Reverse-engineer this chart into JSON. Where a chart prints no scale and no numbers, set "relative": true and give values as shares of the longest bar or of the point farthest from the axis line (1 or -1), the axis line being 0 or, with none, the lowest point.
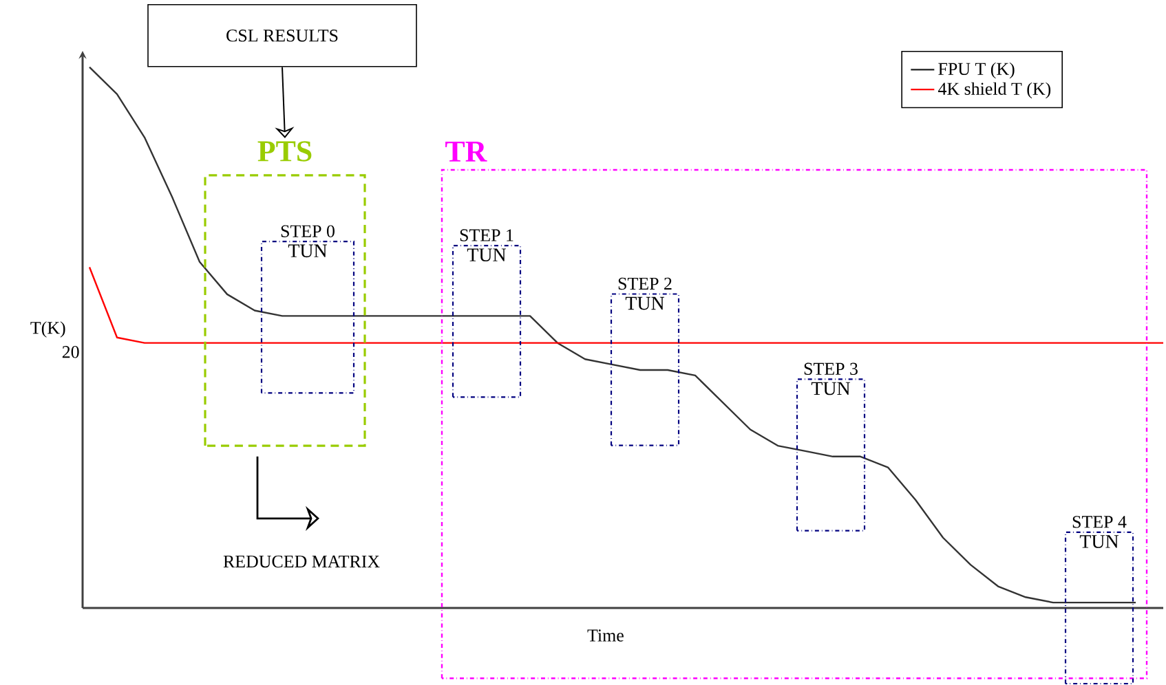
{
  "chart_data": {
    "type": "line",
    "relative": true,
    "xlabel": "Time",
    "ylabel": "T(K)",
    "categories": [
      null,
      null,
      null,
      null,
      null,
      null,
      null,
      null,
      null,
      null,
      null,
      null,
      null,
      null,
      null,
      null,
      null,
      null,
      null,
      null,
      null,
      null,
      null,
      null,
      null,
      null,
      null,
      null,
      null,
      null,
      null,
      null,
      null,
      null,
      null,
      null,
      null,
      null,
      null,
      null
    ],
    "series": [
      {
        "name": "FPU T (K)",
        "color": "#333333",
        "values": [
          1.0,
          0.95,
          0.87,
          0.76,
          0.64,
          0.58,
          0.55,
          0.54,
          0.54,
          0.54,
          0.54,
          0.54,
          0.54,
          0.54,
          0.54,
          0.54,
          0.54,
          0.49,
          0.46,
          0.45,
          0.44,
          0.44,
          0.43,
          0.38,
          0.33,
          0.3,
          0.29,
          0.28,
          0.28,
          0.26,
          0.2,
          0.13,
          0.08,
          0.04,
          0.02,
          0.01,
          0.01,
          0.01,
          0.01,
          null
        ]
      },
      {
        "name": "4K shield T (K)",
        "color": "#ff0000",
        "values": [
          0.63,
          0.5,
          0.49,
          0.49,
          0.49,
          0.49,
          0.49,
          0.49,
          0.49,
          0.49,
          0.49,
          0.49,
          0.49,
          0.49,
          0.49,
          0.49,
          0.49,
          0.49,
          0.49,
          0.49,
          0.49,
          0.49,
          0.49,
          0.49,
          0.49,
          0.49,
          0.49,
          0.49,
          0.49,
          0.49,
          0.49,
          0.49,
          0.49,
          0.49,
          0.49,
          0.49,
          0.49,
          0.49,
          0.49,
          0.49
        ]
      }
    ],
    "annotations": [
      "STEP 0",
      "STEP 1",
      "STEP 2",
      "STEP 3",
      "STEP 4",
      "20",
      "CSL RESULTS",
      "REDUCED MATRIX",
      "PTS",
      "TR",
      "TUN",
      "TUN",
      "TUN",
      "TUN",
      "TUN"
    ],
    "legend": "top right"
  }
}
